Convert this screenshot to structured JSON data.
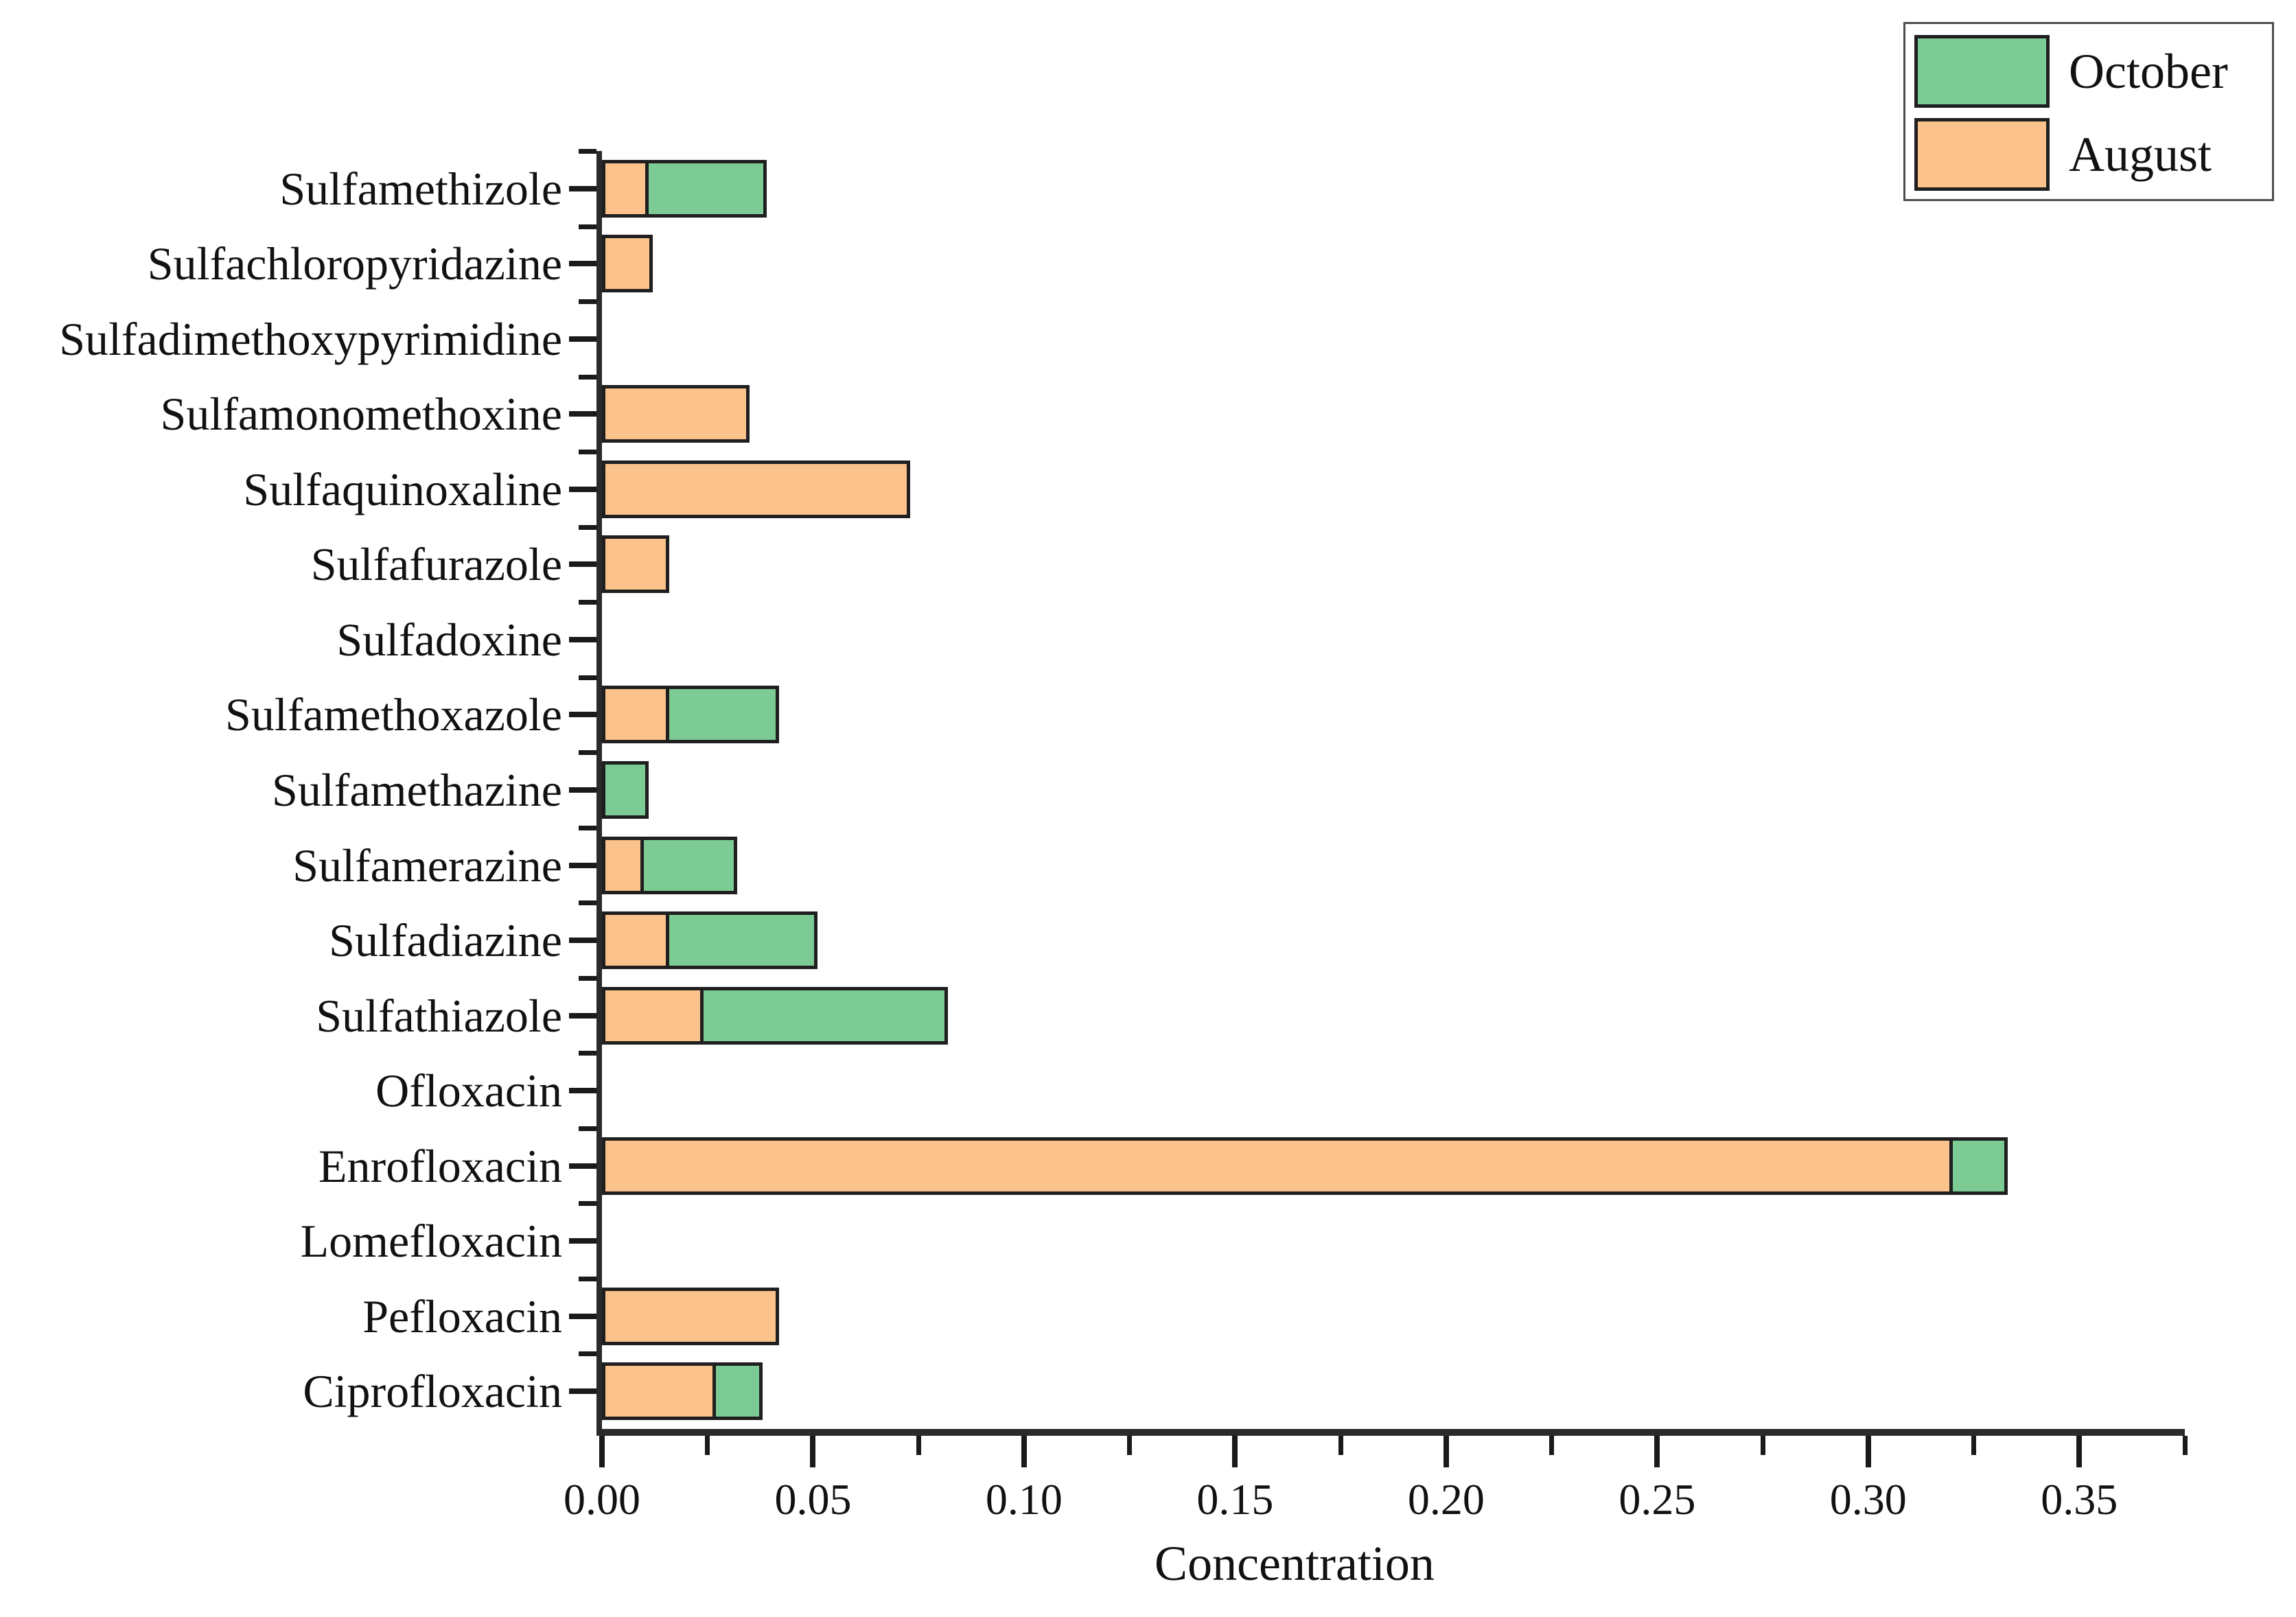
{
  "chart_data": {
    "type": "bar",
    "orientation": "horizontal",
    "stacked": true,
    "title": "",
    "xlabel": "Concentration",
    "ylabel": "",
    "xlim": [
      0,
      0.375
    ],
    "x_major_ticks": [
      0.0,
      0.05,
      0.1,
      0.15,
      0.2,
      0.25,
      0.3,
      0.35
    ],
    "x_major_tick_labels": [
      "0.00",
      "0.05",
      "0.10",
      "0.15",
      "0.20",
      "0.25",
      "0.30",
      "0.35"
    ],
    "x_minor_tick_step": 0.025,
    "grid": false,
    "background_color": "#ffffff",
    "axis_color": "#2a2a2a",
    "bar_edge_color": "#1f1f1f",
    "categories": [
      "Sulfamethizole",
      "Sulfachloropyridazine",
      "Sulfadimethoxypyrimidine",
      "Sulfamonomethoxine",
      "Sulfaquinoxaline",
      "Sulfafurazole",
      "Sulfadoxine",
      "Sulfamethoxazole",
      "Sulfamethazine",
      "Sulfamerazine",
      "Sulfadiazine",
      "Sulfathiazole",
      "Ofloxacin",
      "Enrofloxacin",
      "Lomefloxacin",
      "Pefloxacin",
      "Ciprofloxacin"
    ],
    "series": [
      {
        "name": "October",
        "color": "#7dcb94",
        "values": [
          0.028,
          0,
          0,
          0,
          0,
          0,
          0,
          0.026,
          0.011,
          0.022,
          0.035,
          0.058,
          0,
          0.013,
          0,
          0,
          0.011
        ]
      },
      {
        "name": "August",
        "color": "#fbc28c",
        "values": [
          0.011,
          0.012,
          0,
          0.035,
          0.073,
          0.016,
          0,
          0.016,
          0,
          0.01,
          0.016,
          0.024,
          0,
          0.32,
          0,
          0.042,
          0.027
        ]
      }
    ],
    "stack_order": [
      "August",
      "October"
    ],
    "legend": {
      "position": "top-right",
      "entries": [
        "October",
        "August"
      ]
    }
  }
}
